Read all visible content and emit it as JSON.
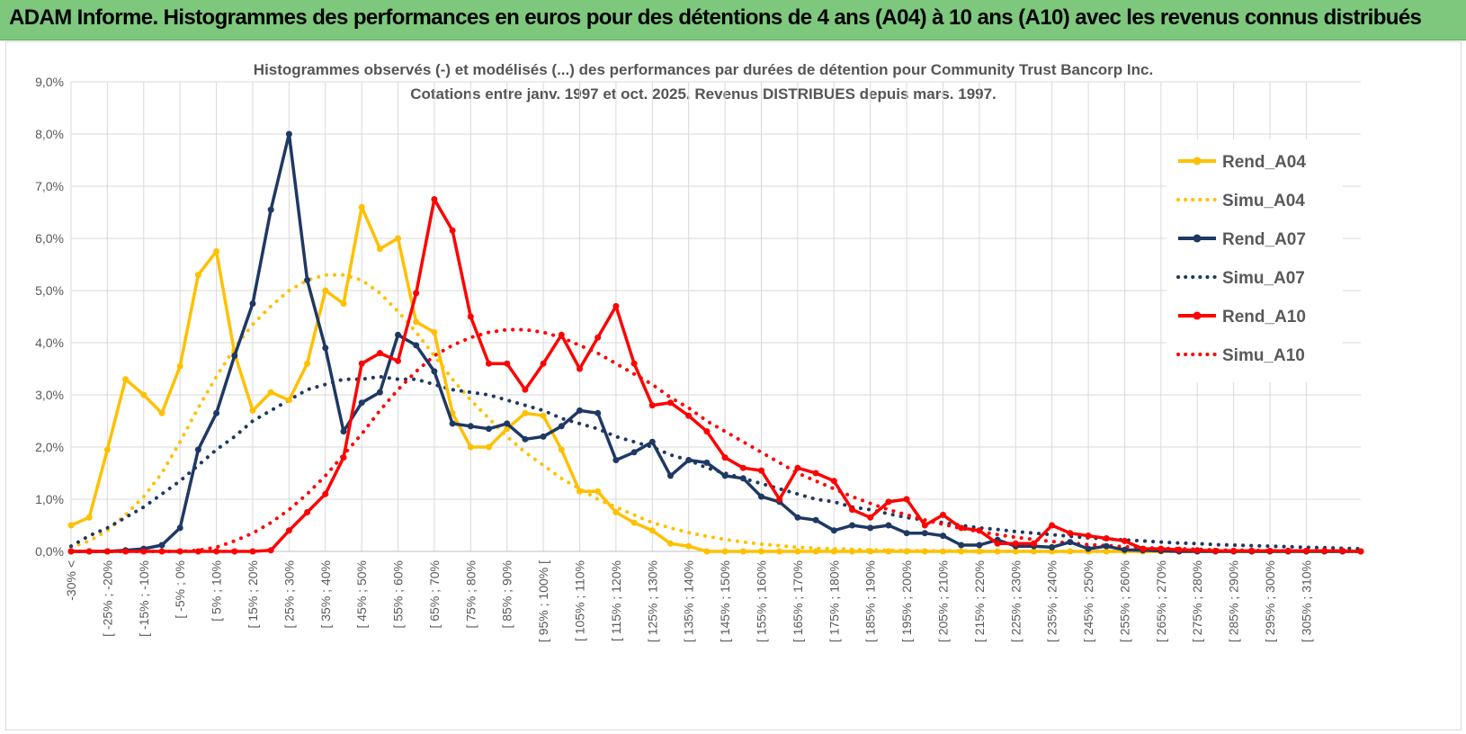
{
  "banner": {
    "title": "ADAM Informe. Histogrammes des performances en euros pour des détentions de 4 ans (A04) à 10 ans (A10) avec les revenus connus distribués",
    "bg_color": "#7dc87d"
  },
  "chart_data": {
    "type": "line",
    "title": "Histogrammes observés (-) et modélisés (...) des performances par durées de détention pour Community Trust Bancorp Inc.",
    "subtitle": "Cotations entre janv. 1997 et oct. 2025.  Revenus DISTRIBUES depuis mars. 1997.",
    "xlabel": "",
    "ylabel": "",
    "ylim": [
      0,
      9
    ],
    "y_ticks": [
      "0,0%",
      "1,0%",
      "2,0%",
      "3,0%",
      "4,0%",
      "5,0%",
      "6,0%",
      "7,0%",
      "8,0%",
      "9,0%"
    ],
    "grid": true,
    "legend_position": "right",
    "categories": [
      "-30% <",
      "[ -30% ; -25%",
      "[ -25% ; -20%",
      "[ -20% ; -15%",
      "[ -15% ; -10%",
      "[ -10% ; -5%",
      "[ -5% ; 0%",
      "[ 0% ; 5%",
      "[ 5% ; 10%",
      "[ 10% ; 15%",
      "[ 15% ; 20%",
      "[ 20% ; 25%",
      "[ 25% ; 30%",
      "[ 30% ; 35%",
      "[ 35% ; 40%",
      "[ 40% ; 45%",
      "[ 45% ; 50%",
      "[ 50% ; 55%",
      "[ 55% ; 60%",
      "[ 60% ; 65%",
      "[ 65% ; 70%",
      "[ 70% ; 75%",
      "[ 75% ; 80%",
      "[ 80% ; 85%",
      "[ 85% ; 90%",
      "[ 90% ; 95%",
      "[ 95% ; 100% [",
      "[ 100% ; 105%",
      "[ 105% ; 110%",
      "[ 110% ; 115%",
      "[ 115% ; 120%",
      "[ 120% ; 125%",
      "[ 125% ; 130%",
      "[ 130% ; 135%",
      "[ 135% ; 140%",
      "[ 140% ; 145%",
      "[ 145% ; 150%",
      "[ 150% ; 155%",
      "[ 155% ; 160%",
      "[ 160% ; 165%",
      "[ 165% ; 170%",
      "[ 170% ; 175%",
      "[ 175% ; 180%",
      "[ 180% ; 185%",
      "[ 185% ; 190%",
      "[ 190% ; 195%",
      "[ 195% ; 200%",
      "[ 200% ; 205%",
      "[ 205% ; 210%",
      "[ 210% ; 215%",
      "[ 215% ; 220%",
      "[ 220% ; 225%",
      "[ 225% ; 230%",
      "[ 230% ; 235%",
      "[ 235% ; 240%",
      "[ 240% ; 245%",
      "[ 245% ; 250%",
      "[ 250% ; 255%",
      "[ 255% ; 260%",
      "[ 260% ; 265%",
      "[ 265% ; 270%",
      "[ 270% ; 275%",
      "[ 275% ; 280%",
      "[ 280% ; 285%",
      "[ 285% ; 290%",
      "[ 290% ; 295%",
      "[ 295% ; 300%",
      "[ 300% ; 305%",
      "[ 305% ; 310%",
      "[ 310% ; 315%",
      "[ 315% ; 320%",
      "[ 320% ; 325%"
    ],
    "visible_tick_labels": [
      "-30% <",
      "[ -25% ; -20%",
      "[ -15% ; -10%",
      "[ -5% ; 0%",
      "[ 5% ; 10%",
      "[ 15% ; 20%",
      "[ 25% ; 30%",
      "[ 35% ; 40%",
      "[ 45% ; 50%",
      "[ 55% ; 60%",
      "[ 65% ; 70%",
      "[ 75% ; 80%",
      "[ 85% ; 90%",
      "[ 95% ; 100% [",
      "[ 105% ; 110%",
      "[ 115% ; 120%",
      "[ 125% ; 130%",
      "[ 135% ; 140%",
      "[ 145% ; 150%",
      "[ 155% ; 160%",
      "[ 165% ; 170%",
      "[ 175% ; 180%",
      "[ 185% ; 190%",
      "[ 195% ; 200%",
      "[ 205% ; 210%",
      "[ 215% ; 220%",
      "[ 225% ; 230%",
      "[ 235% ; 240%",
      "[ 245% ; 250%",
      "[ 255% ; 260%",
      "[ 265% ; 270%",
      "[ 275% ; 280%",
      "[ 285% ; 290%",
      "[ 295% ; 300%",
      "[ 305% ; 310%"
    ],
    "series": [
      {
        "name": "Rend_A04",
        "style": "solid",
        "color": "#ffc000",
        "values": [
          0.5,
          0.65,
          1.95,
          3.3,
          3.0,
          2.65,
          3.55,
          5.3,
          5.75,
          3.8,
          2.7,
          3.05,
          2.9,
          3.6,
          5.0,
          4.75,
          6.6,
          5.8,
          6.0,
          4.4,
          4.2,
          2.65,
          2.0,
          2.0,
          2.35,
          2.65,
          2.6,
          1.95,
          1.15,
          1.15,
          0.75,
          0.55,
          0.4,
          0.15,
          0.1,
          0.0,
          0,
          0,
          0,
          0,
          0,
          0,
          0,
          0,
          0,
          0,
          0,
          0,
          0,
          0,
          0,
          0,
          0,
          0,
          0,
          0,
          0,
          0,
          0,
          0,
          0,
          0,
          0,
          0,
          0,
          0,
          0,
          0,
          0,
          0,
          0,
          0
        ]
      },
      {
        "name": "Simu_A04",
        "style": "dotted",
        "color": "#ffc000",
        "values": [
          0.08,
          0.2,
          0.4,
          0.7,
          1.05,
          1.5,
          2.1,
          2.75,
          3.35,
          3.9,
          4.35,
          4.7,
          5.0,
          5.2,
          5.3,
          5.3,
          5.2,
          4.95,
          4.6,
          4.2,
          3.75,
          3.3,
          2.9,
          2.55,
          2.2,
          1.9,
          1.65,
          1.4,
          1.2,
          1.0,
          0.85,
          0.7,
          0.55,
          0.45,
          0.36,
          0.29,
          0.23,
          0.18,
          0.14,
          0.11,
          0.08,
          0.06,
          0.05,
          0.04,
          0.03,
          0.02,
          0.02,
          0.01,
          0.01,
          0.01,
          0,
          0,
          0,
          0,
          0,
          0,
          0,
          0,
          0,
          0,
          0,
          0,
          0,
          0,
          0,
          0,
          0,
          0,
          0,
          0,
          0,
          0
        ]
      },
      {
        "name": "Rend_A07",
        "style": "solid",
        "color": "#1f3864",
        "values": [
          0,
          0,
          0,
          0.02,
          0.05,
          0.12,
          0.45,
          1.95,
          2.65,
          3.75,
          4.75,
          6.55,
          8.0,
          5.2,
          3.9,
          2.3,
          2.85,
          3.05,
          4.15,
          3.95,
          3.45,
          2.45,
          2.4,
          2.35,
          2.45,
          2.15,
          2.2,
          2.4,
          2.7,
          2.65,
          1.75,
          1.9,
          2.1,
          1.45,
          1.75,
          1.7,
          1.45,
          1.4,
          1.05,
          0.95,
          0.65,
          0.6,
          0.4,
          0.5,
          0.45,
          0.5,
          0.35,
          0.35,
          0.3,
          0.12,
          0.12,
          0.22,
          0.1,
          0.1,
          0.08,
          0.18,
          0.05,
          0.1,
          0.03,
          0.02,
          0.01,
          0,
          0,
          0,
          0,
          0,
          0,
          0,
          0,
          0,
          0,
          0
        ]
      },
      {
        "name": "Simu_A07",
        "style": "dotted",
        "color": "#1f3864",
        "values": [
          0.1,
          0.3,
          0.45,
          0.65,
          0.85,
          1.1,
          1.35,
          1.65,
          1.95,
          2.2,
          2.5,
          2.7,
          2.9,
          3.1,
          3.2,
          3.3,
          3.3,
          3.35,
          3.3,
          3.3,
          3.2,
          3.1,
          3.05,
          3.0,
          2.9,
          2.8,
          2.7,
          2.55,
          2.45,
          2.35,
          2.2,
          2.1,
          2.0,
          1.85,
          1.75,
          1.6,
          1.5,
          1.4,
          1.3,
          1.2,
          1.1,
          1.0,
          0.95,
          0.85,
          0.8,
          0.72,
          0.65,
          0.6,
          0.55,
          0.5,
          0.45,
          0.42,
          0.38,
          0.35,
          0.32,
          0.29,
          0.26,
          0.24,
          0.22,
          0.2,
          0.18,
          0.16,
          0.15,
          0.13,
          0.12,
          0.11,
          0.1,
          0.09,
          0.08,
          0.07,
          0.06,
          0.05
        ]
      },
      {
        "name": "Rend_A10",
        "style": "solid",
        "color": "#ff0000",
        "values": [
          0,
          0,
          0,
          0,
          0,
          0,
          0,
          0,
          0,
          0,
          0,
          0.02,
          0.4,
          0.75,
          1.1,
          1.8,
          3.6,
          3.8,
          3.65,
          4.95,
          6.75,
          6.15,
          4.5,
          3.6,
          3.6,
          3.1,
          3.6,
          4.15,
          3.5,
          4.1,
          4.7,
          3.6,
          2.8,
          2.85,
          2.6,
          2.3,
          1.8,
          1.6,
          1.55,
          1.0,
          1.6,
          1.5,
          1.35,
          0.8,
          0.65,
          0.95,
          1.0,
          0.5,
          0.7,
          0.45,
          0.4,
          0.15,
          0.15,
          0.15,
          0.5,
          0.35,
          0.3,
          0.25,
          0.2,
          0.05,
          0.05,
          0.03,
          0.02,
          0.01,
          0.01,
          0.01,
          0.01,
          0.01,
          0.01,
          0.01,
          0.01,
          0
        ]
      },
      {
        "name": "Simu_A10",
        "style": "dotted",
        "color": "#ff0000",
        "values": [
          0,
          0,
          0,
          0,
          0,
          0,
          0,
          0.02,
          0.08,
          0.2,
          0.35,
          0.55,
          0.8,
          1.1,
          1.45,
          1.85,
          2.25,
          2.7,
          3.1,
          3.45,
          3.75,
          3.95,
          4.1,
          4.2,
          4.25,
          4.25,
          4.2,
          4.1,
          3.95,
          3.8,
          3.6,
          3.4,
          3.2,
          2.95,
          2.75,
          2.5,
          2.3,
          2.1,
          1.9,
          1.7,
          1.5,
          1.35,
          1.2,
          1.05,
          0.92,
          0.8,
          0.7,
          0.6,
          0.52,
          0.44,
          0.38,
          0.32,
          0.27,
          0.23,
          0.19,
          0.16,
          0.13,
          0.11,
          0.09,
          0.07,
          0.06,
          0.05,
          0.04,
          0.03,
          0.02,
          0.02,
          0.01,
          0.01,
          0.01,
          0,
          0,
          0
        ]
      }
    ]
  }
}
